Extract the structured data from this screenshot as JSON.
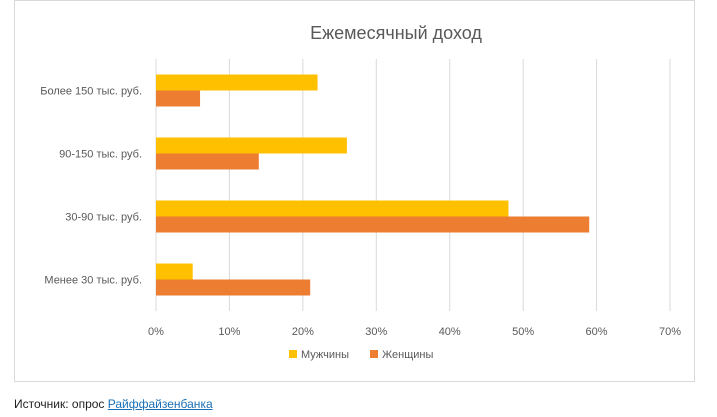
{
  "chart_data": {
    "type": "bar",
    "orientation": "horizontal",
    "title": "Ежемесячный доход",
    "categories": [
      "Более 150 тыс. руб.",
      "90-150 тыс. руб.",
      "30-90 тыс. руб.",
      "Менее 30 тыс. руб."
    ],
    "series": [
      {
        "name": "Мужчины",
        "color": "#ffc000",
        "values": [
          22,
          26,
          48,
          5
        ]
      },
      {
        "name": "Женщины",
        "color": "#ed7d31",
        "values": [
          6,
          14,
          59,
          21
        ]
      }
    ],
    "xlim": [
      0,
      70
    ],
    "x_ticks": [
      0,
      10,
      20,
      30,
      40,
      50,
      60,
      70
    ],
    "x_tick_labels": [
      "0%",
      "10%",
      "20%",
      "30%",
      "40%",
      "50%",
      "60%",
      "70%"
    ],
    "xlabel": "",
    "ylabel": "",
    "grid": "vertical",
    "legend": "bottom"
  },
  "source": {
    "label": "Источник: опрос",
    "link_text": "Райффайзенбанка"
  },
  "colors": {
    "gridline": "#d9d9d9",
    "axis_text": "#595959",
    "link": "#1a6fb5"
  }
}
